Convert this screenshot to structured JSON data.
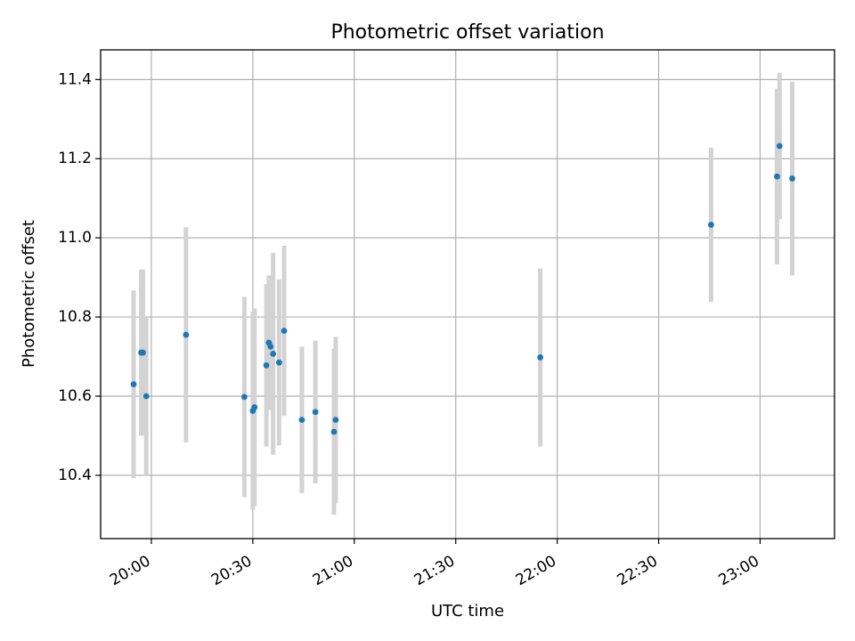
{
  "chart_data": {
    "type": "scatter",
    "title": "Photometric offset variation",
    "xlabel": "UTC time",
    "ylabel": "Photometric offset",
    "x_time_range": [
      "19:45",
      "23:22"
    ],
    "ylim": [
      10.24,
      11.475
    ],
    "x_ticks": [
      "20:00",
      "20:30",
      "21:00",
      "21:30",
      "22:00",
      "22:30",
      "23:00"
    ],
    "y_ticks": [
      10.4,
      10.6,
      10.8,
      11.0,
      11.2,
      11.4
    ],
    "y_tick_labels": [
      "10.4",
      "10.6",
      "10.8",
      "11.0",
      "11.2",
      "11.4"
    ],
    "grid": true,
    "colors": {
      "point": "#1f77b4",
      "errorbar": "#d3d3d3",
      "grid": "#b0b0b0"
    },
    "points": [
      {
        "t": "19:54:45",
        "y": 10.63,
        "err": 0.237
      },
      {
        "t": "19:57:00",
        "y": 10.71,
        "err": 0.21
      },
      {
        "t": "19:57:30",
        "y": 10.71,
        "err": 0.21
      },
      {
        "t": "19:58:30",
        "y": 10.6,
        "err": 0.2
      },
      {
        "t": "20:10:15",
        "y": 10.755,
        "err": 0.272
      },
      {
        "t": "20:27:30",
        "y": 10.598,
        "err": 0.253
      },
      {
        "t": "20:30:00",
        "y": 10.563,
        "err": 0.25
      },
      {
        "t": "20:30:30",
        "y": 10.572,
        "err": 0.25
      },
      {
        "t": "20:34:00",
        "y": 10.678,
        "err": 0.205
      },
      {
        "t": "20:34:45",
        "y": 10.735,
        "err": 0.17
      },
      {
        "t": "20:35:15",
        "y": 10.725,
        "err": 0.16
      },
      {
        "t": "20:36:00",
        "y": 10.707,
        "err": 0.255
      },
      {
        "t": "20:37:45",
        "y": 10.685,
        "err": 0.21
      },
      {
        "t": "20:39:15",
        "y": 10.765,
        "err": 0.215
      },
      {
        "t": "20:44:30",
        "y": 10.54,
        "err": 0.185
      },
      {
        "t": "20:48:30",
        "y": 10.56,
        "err": 0.18
      },
      {
        "t": "20:54:00",
        "y": 10.51,
        "err": 0.21
      },
      {
        "t": "20:54:30",
        "y": 10.54,
        "err": 0.21
      },
      {
        "t": "21:55:00",
        "y": 10.698,
        "err": 0.225
      },
      {
        "t": "22:45:30",
        "y": 11.033,
        "err": 0.195
      },
      {
        "t": "23:05:00",
        "y": 11.155,
        "err": 0.222
      },
      {
        "t": "23:05:45",
        "y": 11.232,
        "err": 0.185
      },
      {
        "t": "23:09:30",
        "y": 11.15,
        "err": 0.245
      }
    ]
  }
}
